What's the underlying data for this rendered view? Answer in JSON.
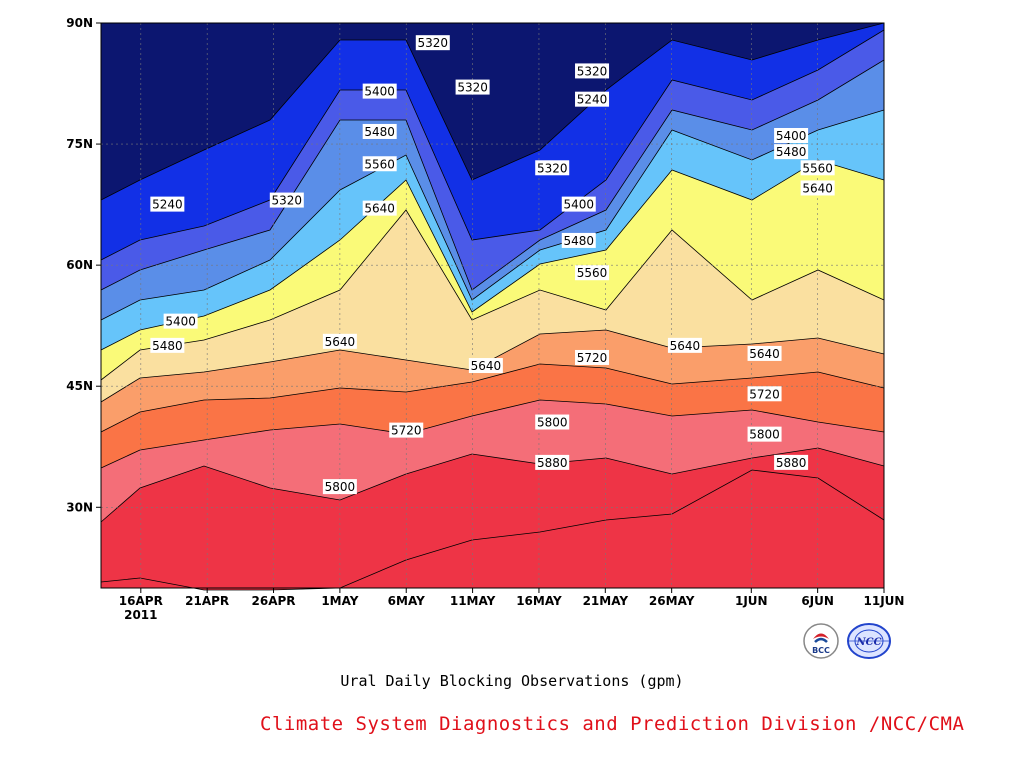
{
  "chart_data": {
    "type": "contour",
    "title": "Ural Daily Blocking Observations (gpm)",
    "x_ticks": [
      "16APR",
      "21APR",
      "26APR",
      "1MAY",
      "6MAY",
      "11MAY",
      "16MAY",
      "21MAY",
      "26MAY",
      "1JUN",
      "6JUN",
      "11JUN"
    ],
    "x_tick_dates": [
      "2011-04-16",
      "2011-04-21",
      "2011-04-26",
      "2011-05-01",
      "2011-05-06",
      "2011-05-11",
      "2011-05-16",
      "2011-05-21",
      "2011-05-26",
      "2011-06-01",
      "2011-06-06",
      "2011-06-11"
    ],
    "year_label": "2011",
    "y_ticks": [
      "30N",
      "45N",
      "60N",
      "75N",
      "90N"
    ],
    "y_tick_values": [
      30,
      45,
      60,
      75,
      90
    ],
    "xlim": [
      "2011-04-13",
      "2011-06-11"
    ],
    "ylim": [
      20,
      90
    ],
    "grid": true,
    "contour_levels": [
      5240,
      5320,
      5400,
      5480,
      5560,
      5640,
      5720,
      5800,
      5880
    ],
    "fill_colors": [
      "#0c1670",
      "#1230e6",
      "#4a5ae8",
      "#5a8ee8",
      "#66c4fa",
      "#fafa78",
      "#fae0a0",
      "#fa9e6a",
      "#fa7446",
      "#f46e78",
      "#ee3446"
    ],
    "contour_labels": [
      {
        "text": "5240",
        "date": "2011-04-18",
        "lat": 67.5
      },
      {
        "text": "5320",
        "date": "2011-04-27",
        "lat": 68.0
      },
      {
        "text": "5320",
        "date": "2011-05-08",
        "lat": 87.5
      },
      {
        "text": "5400",
        "date": "2011-05-04",
        "lat": 81.5
      },
      {
        "text": "5320",
        "date": "2011-05-11",
        "lat": 82.0
      },
      {
        "text": "5320",
        "date": "2011-05-20",
        "lat": 84.0
      },
      {
        "text": "5240",
        "date": "2011-05-20",
        "lat": 80.5
      },
      {
        "text": "5480",
        "date": "2011-05-04",
        "lat": 76.5
      },
      {
        "text": "5560",
        "date": "2011-05-04",
        "lat": 72.5
      },
      {
        "text": "5640",
        "date": "2011-05-04",
        "lat": 67.0
      },
      {
        "text": "5320",
        "date": "2011-05-17",
        "lat": 72.0
      },
      {
        "text": "5400",
        "date": "2011-05-19",
        "lat": 67.5
      },
      {
        "text": "5480",
        "date": "2011-05-19",
        "lat": 63.0
      },
      {
        "text": "5560",
        "date": "2011-05-20",
        "lat": 59.0
      },
      {
        "text": "5400",
        "date": "2011-04-19",
        "lat": 53.0
      },
      {
        "text": "5480",
        "date": "2011-04-18",
        "lat": 50.0
      },
      {
        "text": "5640",
        "date": "2011-05-01",
        "lat": 50.5
      },
      {
        "text": "5640",
        "date": "2011-05-12",
        "lat": 47.5
      },
      {
        "text": "5720",
        "date": "2011-05-20",
        "lat": 48.5
      },
      {
        "text": "5640",
        "date": "2011-05-27",
        "lat": 50.0
      },
      {
        "text": "5640",
        "date": "2011-06-02",
        "lat": 49.0
      },
      {
        "text": "5720",
        "date": "2011-06-02",
        "lat": 44.0
      },
      {
        "text": "5800",
        "date": "2011-06-02",
        "lat": 39.0
      },
      {
        "text": "5880",
        "date": "2011-06-04",
        "lat": 35.5
      },
      {
        "text": "5400",
        "date": "2011-06-04",
        "lat": 76.0
      },
      {
        "text": "5480",
        "date": "2011-06-04",
        "lat": 74.0
      },
      {
        "text": "5560",
        "date": "2011-06-06",
        "lat": 72.0
      },
      {
        "text": "5640",
        "date": "2011-06-06",
        "lat": 69.5
      },
      {
        "text": "5720",
        "date": "2011-05-06",
        "lat": 39.5
      },
      {
        "text": "5800",
        "date": "2011-05-17",
        "lat": 40.5
      },
      {
        "text": "5880",
        "date": "2011-05-17",
        "lat": 35.5
      },
      {
        "text": "5800",
        "date": "2011-05-01",
        "lat": 32.5
      }
    ]
  },
  "footer": {
    "credit": "Climate System Diagnostics and Prediction Division /NCC/CMA",
    "logo_left_text": "BCC",
    "logo_right_text": "NCC"
  }
}
